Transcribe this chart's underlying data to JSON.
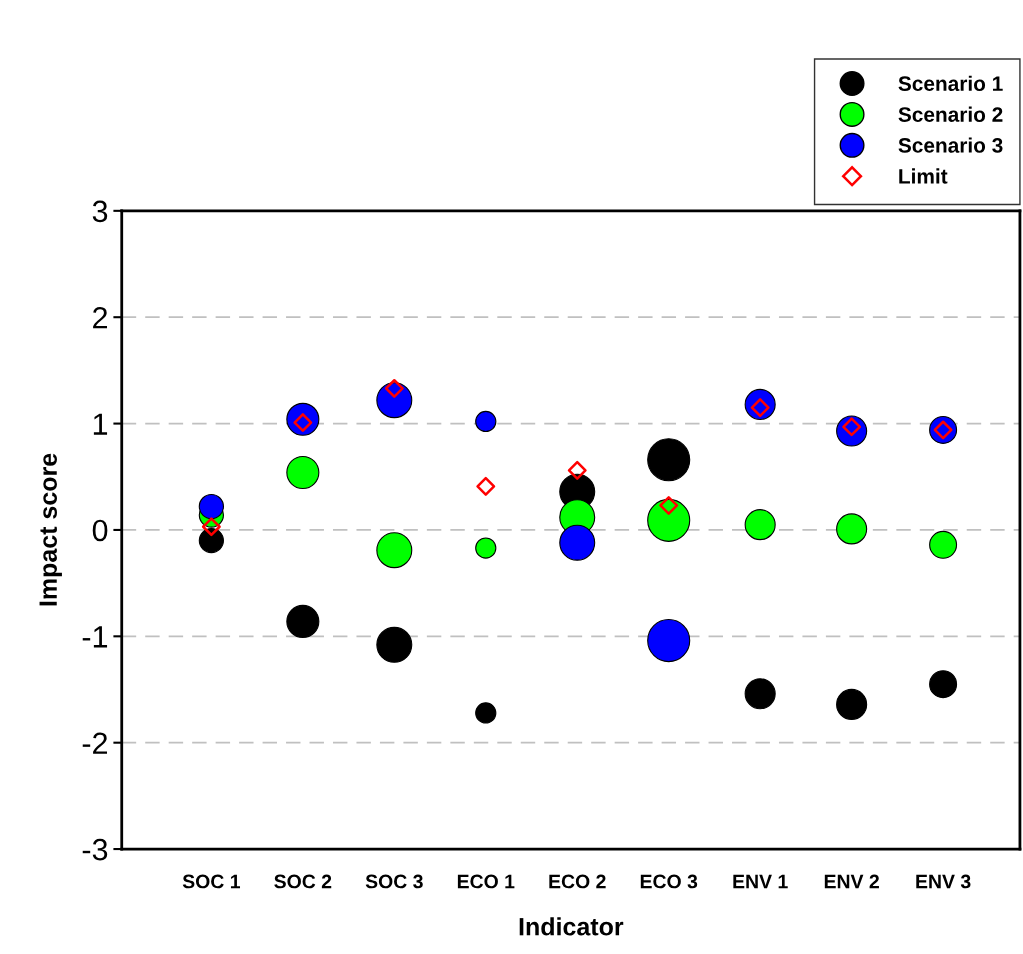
{
  "chart_data": {
    "type": "bubble",
    "xlabel": "Indicator",
    "ylabel": "Impact score",
    "categories": [
      "SOC 1",
      "SOC 2",
      "SOC 3",
      "ECO 1",
      "ECO 2",
      "ECO 3",
      "ENV 1",
      "ENV 2",
      "ENV 3"
    ],
    "series": [
      {
        "name": "Scenario 1",
        "color": "#000000",
        "values": [
          -0.1,
          -0.86,
          -1.08,
          -1.72,
          0.36,
          0.66,
          -1.54,
          -1.64,
          -1.45
        ],
        "sizes": [
          0.33,
          0.58,
          0.69,
          0.23,
          0.69,
          1,
          0.51,
          0.51,
          0.41
        ]
      },
      {
        "name": "Scenario 2",
        "color": "#00ff00",
        "values": [
          0.14,
          0.54,
          -0.19,
          -0.17,
          0.12,
          0.09,
          0.05,
          0.01,
          -0.14
        ],
        "sizes": [
          0.33,
          0.58,
          0.69,
          0.23,
          0.69,
          1,
          0.51,
          0.51,
          0.41
        ]
      },
      {
        "name": "Scenario 3",
        "color": "#0000ff",
        "values": [
          0.22,
          1.04,
          1.22,
          1.02,
          -0.12,
          -1.04,
          1.18,
          0.93,
          0.94
        ],
        "sizes": [
          0.33,
          0.58,
          0.69,
          0.23,
          0.69,
          1,
          0.51,
          0.51,
          0.41
        ]
      },
      {
        "name": "Limit",
        "type": "scatter",
        "marker": "diamond",
        "color": "#ff0000",
        "values": [
          0.03,
          1.01,
          1.33,
          0.41,
          0.56,
          0.23,
          1.15,
          0.97,
          0.94
        ]
      }
    ],
    "ylim": [
      -3,
      3
    ],
    "yticks": [
      -3,
      -2,
      -1,
      0,
      1,
      2,
      3
    ],
    "grid": "y",
    "legend": "top right"
  }
}
